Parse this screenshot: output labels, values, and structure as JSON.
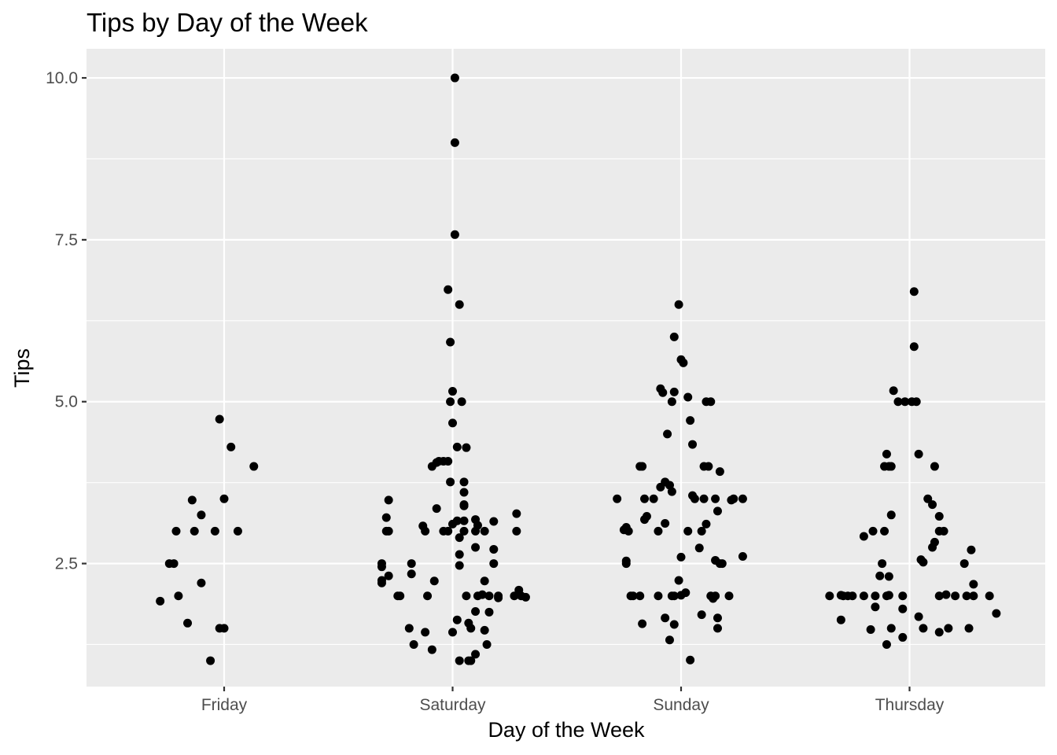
{
  "chart_data": {
    "type": "scatter",
    "title": "Tips by Day of the Week",
    "xlabel": "Day of the Week",
    "ylabel": "Tips",
    "categories": [
      "Friday",
      "Saturday",
      "Sunday",
      "Thursday"
    ],
    "yticks": [
      2.5,
      5.0,
      7.5,
      10.0
    ],
    "ytick_labels": [
      "2.5",
      "5.0",
      "7.5",
      "10.0"
    ],
    "ylim": [
      0.6,
      10.45
    ],
    "grid": true,
    "legend": "none",
    "colors": {
      "panel": "#ebebeb",
      "grid": "#ffffff",
      "point": "#000000",
      "tick_text": "#4d4d4d"
    },
    "points": [
      {
        "cat": 1,
        "jitter": -0.28,
        "y": 1.92
      },
      {
        "cat": 1,
        "jitter": -0.24,
        "y": 2.5
      },
      {
        "cat": 1,
        "jitter": -0.22,
        "y": 2.5
      },
      {
        "cat": 1,
        "jitter": -0.21,
        "y": 3.0
      },
      {
        "cat": 1,
        "jitter": -0.2,
        "y": 2.0
      },
      {
        "cat": 1,
        "jitter": -0.16,
        "y": 1.58
      },
      {
        "cat": 1,
        "jitter": -0.14,
        "y": 3.48
      },
      {
        "cat": 1,
        "jitter": -0.13,
        "y": 3.0
      },
      {
        "cat": 1,
        "jitter": -0.1,
        "y": 3.25
      },
      {
        "cat": 1,
        "jitter": -0.1,
        "y": 2.2
      },
      {
        "cat": 1,
        "jitter": -0.06,
        "y": 1.0
      },
      {
        "cat": 1,
        "jitter": -0.04,
        "y": 3.0
      },
      {
        "cat": 1,
        "jitter": -0.02,
        "y": 4.73
      },
      {
        "cat": 1,
        "jitter": -0.02,
        "y": 1.5
      },
      {
        "cat": 1,
        "jitter": 0.0,
        "y": 3.5
      },
      {
        "cat": 1,
        "jitter": 0.0,
        "y": 1.5
      },
      {
        "cat": 1,
        "jitter": 0.03,
        "y": 4.3
      },
      {
        "cat": 1,
        "jitter": 0.06,
        "y": 3.0
      },
      {
        "cat": 1,
        "jitter": 0.13,
        "y": 4.0
      },
      {
        "cat": 2,
        "jitter": 0.01,
        "y": 10.0
      },
      {
        "cat": 2,
        "jitter": 0.01,
        "y": 9.0
      },
      {
        "cat": 2,
        "jitter": 0.01,
        "y": 7.58
      },
      {
        "cat": 2,
        "jitter": -0.02,
        "y": 6.73
      },
      {
        "cat": 2,
        "jitter": 0.03,
        "y": 6.5
      },
      {
        "cat": 2,
        "jitter": -0.01,
        "y": 5.92
      },
      {
        "cat": 2,
        "jitter": 0.0,
        "y": 5.16
      },
      {
        "cat": 2,
        "jitter": -0.01,
        "y": 5.0
      },
      {
        "cat": 2,
        "jitter": 0.04,
        "y": 5.0
      },
      {
        "cat": 2,
        "jitter": 0.0,
        "y": 4.67
      },
      {
        "cat": 2,
        "jitter": 0.02,
        "y": 4.3
      },
      {
        "cat": 2,
        "jitter": 0.06,
        "y": 4.29
      },
      {
        "cat": 2,
        "jitter": -0.09,
        "y": 4.0
      },
      {
        "cat": 2,
        "jitter": -0.07,
        "y": 4.06
      },
      {
        "cat": 2,
        "jitter": -0.06,
        "y": 4.08
      },
      {
        "cat": 2,
        "jitter": -0.04,
        "y": 4.08
      },
      {
        "cat": 2,
        "jitter": -0.02,
        "y": 4.08
      },
      {
        "cat": 2,
        "jitter": -0.01,
        "y": 3.76
      },
      {
        "cat": 2,
        "jitter": 0.05,
        "y": 3.76
      },
      {
        "cat": 2,
        "jitter": 0.05,
        "y": 3.6
      },
      {
        "cat": 2,
        "jitter": 0.05,
        "y": 3.41
      },
      {
        "cat": 2,
        "jitter": 0.05,
        "y": 3.39
      },
      {
        "cat": 2,
        "jitter": -0.28,
        "y": 3.48
      },
      {
        "cat": 2,
        "jitter": -0.07,
        "y": 3.35
      },
      {
        "cat": 2,
        "jitter": -0.29,
        "y": 3.21
      },
      {
        "cat": 2,
        "jitter": -0.29,
        "y": 3.0
      },
      {
        "cat": 2,
        "jitter": -0.28,
        "y": 3.0
      },
      {
        "cat": 2,
        "jitter": -0.13,
        "y": 3.08
      },
      {
        "cat": 2,
        "jitter": -0.12,
        "y": 3.0
      },
      {
        "cat": 2,
        "jitter": -0.04,
        "y": 3.0
      },
      {
        "cat": 2,
        "jitter": -0.02,
        "y": 3.0
      },
      {
        "cat": 2,
        "jitter": 0.0,
        "y": 3.11
      },
      {
        "cat": 2,
        "jitter": 0.02,
        "y": 3.16
      },
      {
        "cat": 2,
        "jitter": 0.05,
        "y": 3.16
      },
      {
        "cat": 2,
        "jitter": 0.1,
        "y": 3.18
      },
      {
        "cat": 2,
        "jitter": 0.11,
        "y": 3.09
      },
      {
        "cat": 2,
        "jitter": 0.18,
        "y": 3.15
      },
      {
        "cat": 2,
        "jitter": 0.28,
        "y": 3.27
      },
      {
        "cat": 2,
        "jitter": 0.05,
        "y": 3.0
      },
      {
        "cat": 2,
        "jitter": 0.1,
        "y": 3.0
      },
      {
        "cat": 2,
        "jitter": 0.14,
        "y": 3.0
      },
      {
        "cat": 2,
        "jitter": 0.28,
        "y": 3.0
      },
      {
        "cat": 2,
        "jitter": 0.03,
        "y": 2.9
      },
      {
        "cat": 2,
        "jitter": 0.1,
        "y": 2.75
      },
      {
        "cat": 2,
        "jitter": 0.18,
        "y": 2.72
      },
      {
        "cat": 2,
        "jitter": 0.03,
        "y": 2.64
      },
      {
        "cat": 2,
        "jitter": 0.03,
        "y": 2.47
      },
      {
        "cat": 2,
        "jitter": 0.18,
        "y": 2.5
      },
      {
        "cat": 2,
        "jitter": -0.31,
        "y": 2.5
      },
      {
        "cat": 2,
        "jitter": -0.31,
        "y": 2.45
      },
      {
        "cat": 2,
        "jitter": -0.18,
        "y": 2.5
      },
      {
        "cat": 2,
        "jitter": -0.28,
        "y": 2.31
      },
      {
        "cat": 2,
        "jitter": -0.31,
        "y": 2.24
      },
      {
        "cat": 2,
        "jitter": -0.31,
        "y": 2.2
      },
      {
        "cat": 2,
        "jitter": -0.18,
        "y": 2.34
      },
      {
        "cat": 2,
        "jitter": -0.08,
        "y": 2.23
      },
      {
        "cat": 2,
        "jitter": 0.14,
        "y": 2.23
      },
      {
        "cat": 2,
        "jitter": -0.24,
        "y": 2.0
      },
      {
        "cat": 2,
        "jitter": -0.23,
        "y": 2.0
      },
      {
        "cat": 2,
        "jitter": -0.11,
        "y": 2.0
      },
      {
        "cat": 2,
        "jitter": 0.06,
        "y": 2.0
      },
      {
        "cat": 2,
        "jitter": 0.11,
        "y": 2.0
      },
      {
        "cat": 2,
        "jitter": 0.13,
        "y": 2.02
      },
      {
        "cat": 2,
        "jitter": 0.16,
        "y": 2.0
      },
      {
        "cat": 2,
        "jitter": 0.2,
        "y": 2.0
      },
      {
        "cat": 2,
        "jitter": 0.27,
        "y": 2.0
      },
      {
        "cat": 2,
        "jitter": 0.29,
        "y": 2.09
      },
      {
        "cat": 2,
        "jitter": 0.3,
        "y": 2.0
      },
      {
        "cat": 2,
        "jitter": 0.32,
        "y": 1.98
      },
      {
        "cat": 2,
        "jitter": 0.2,
        "y": 1.97
      },
      {
        "cat": 2,
        "jitter": 0.1,
        "y": 1.76
      },
      {
        "cat": 2,
        "jitter": 0.16,
        "y": 1.75
      },
      {
        "cat": 2,
        "jitter": 0.02,
        "y": 1.63
      },
      {
        "cat": 2,
        "jitter": 0.07,
        "y": 1.58
      },
      {
        "cat": 2,
        "jitter": 0.08,
        "y": 1.5
      },
      {
        "cat": 2,
        "jitter": 0.14,
        "y": 1.47
      },
      {
        "cat": 2,
        "jitter": -0.19,
        "y": 1.5
      },
      {
        "cat": 2,
        "jitter": -0.12,
        "y": 1.44
      },
      {
        "cat": 2,
        "jitter": 0.0,
        "y": 1.44
      },
      {
        "cat": 2,
        "jitter": -0.17,
        "y": 1.25
      },
      {
        "cat": 2,
        "jitter": 0.15,
        "y": 1.25
      },
      {
        "cat": 2,
        "jitter": -0.09,
        "y": 1.17
      },
      {
        "cat": 2,
        "jitter": 0.1,
        "y": 1.1
      },
      {
        "cat": 2,
        "jitter": 0.03,
        "y": 1.0
      },
      {
        "cat": 2,
        "jitter": 0.07,
        "y": 1.0
      },
      {
        "cat": 2,
        "jitter": 0.08,
        "y": 1.0
      },
      {
        "cat": 3,
        "jitter": -0.01,
        "y": 6.5
      },
      {
        "cat": 3,
        "jitter": -0.03,
        "y": 6.0
      },
      {
        "cat": 3,
        "jitter": 0.0,
        "y": 5.65
      },
      {
        "cat": 3,
        "jitter": 0.01,
        "y": 5.6
      },
      {
        "cat": 3,
        "jitter": -0.09,
        "y": 5.2
      },
      {
        "cat": 3,
        "jitter": -0.08,
        "y": 5.14
      },
      {
        "cat": 3,
        "jitter": -0.03,
        "y": 5.15
      },
      {
        "cat": 3,
        "jitter": 0.03,
        "y": 5.07
      },
      {
        "cat": 3,
        "jitter": -0.04,
        "y": 5.0
      },
      {
        "cat": 3,
        "jitter": 0.11,
        "y": 5.0
      },
      {
        "cat": 3,
        "jitter": 0.13,
        "y": 5.0
      },
      {
        "cat": 3,
        "jitter": 0.04,
        "y": 4.71
      },
      {
        "cat": 3,
        "jitter": -0.06,
        "y": 4.5
      },
      {
        "cat": 3,
        "jitter": 0.05,
        "y": 4.34
      },
      {
        "cat": 3,
        "jitter": -0.18,
        "y": 4.0
      },
      {
        "cat": 3,
        "jitter": -0.17,
        "y": 4.0
      },
      {
        "cat": 3,
        "jitter": 0.1,
        "y": 4.0
      },
      {
        "cat": 3,
        "jitter": 0.12,
        "y": 4.0
      },
      {
        "cat": 3,
        "jitter": 0.17,
        "y": 3.92
      },
      {
        "cat": 3,
        "jitter": -0.09,
        "y": 3.68
      },
      {
        "cat": 3,
        "jitter": -0.07,
        "y": 3.76
      },
      {
        "cat": 3,
        "jitter": -0.05,
        "y": 3.71
      },
      {
        "cat": 3,
        "jitter": -0.04,
        "y": 3.61
      },
      {
        "cat": 3,
        "jitter": -0.28,
        "y": 3.5
      },
      {
        "cat": 3,
        "jitter": -0.16,
        "y": 3.5
      },
      {
        "cat": 3,
        "jitter": -0.12,
        "y": 3.5
      },
      {
        "cat": 3,
        "jitter": 0.05,
        "y": 3.55
      },
      {
        "cat": 3,
        "jitter": 0.06,
        "y": 3.5
      },
      {
        "cat": 3,
        "jitter": 0.1,
        "y": 3.5
      },
      {
        "cat": 3,
        "jitter": 0.15,
        "y": 3.5
      },
      {
        "cat": 3,
        "jitter": 0.22,
        "y": 3.48
      },
      {
        "cat": 3,
        "jitter": 0.23,
        "y": 3.5
      },
      {
        "cat": 3,
        "jitter": 0.27,
        "y": 3.5
      },
      {
        "cat": 3,
        "jitter": 0.16,
        "y": 3.31
      },
      {
        "cat": 3,
        "jitter": -0.15,
        "y": 3.23
      },
      {
        "cat": 3,
        "jitter": -0.16,
        "y": 3.18
      },
      {
        "cat": 3,
        "jitter": -0.07,
        "y": 3.12
      },
      {
        "cat": 3,
        "jitter": 0.11,
        "y": 3.11
      },
      {
        "cat": 3,
        "jitter": -0.25,
        "y": 3.02
      },
      {
        "cat": 3,
        "jitter": -0.24,
        "y": 3.06
      },
      {
        "cat": 3,
        "jitter": -0.23,
        "y": 3.0
      },
      {
        "cat": 3,
        "jitter": -0.1,
        "y": 3.0
      },
      {
        "cat": 3,
        "jitter": 0.03,
        "y": 3.0
      },
      {
        "cat": 3,
        "jitter": 0.09,
        "y": 3.0
      },
      {
        "cat": 3,
        "jitter": 0.08,
        "y": 2.74
      },
      {
        "cat": 3,
        "jitter": 0.0,
        "y": 2.6
      },
      {
        "cat": 3,
        "jitter": 0.27,
        "y": 2.61
      },
      {
        "cat": 3,
        "jitter": -0.24,
        "y": 2.5
      },
      {
        "cat": 3,
        "jitter": -0.24,
        "y": 2.54
      },
      {
        "cat": 3,
        "jitter": 0.15,
        "y": 2.55
      },
      {
        "cat": 3,
        "jitter": 0.17,
        "y": 2.5
      },
      {
        "cat": 3,
        "jitter": 0.18,
        "y": 2.5
      },
      {
        "cat": 3,
        "jitter": -0.01,
        "y": 2.24
      },
      {
        "cat": 3,
        "jitter": -0.22,
        "y": 2.0
      },
      {
        "cat": 3,
        "jitter": -0.21,
        "y": 2.0
      },
      {
        "cat": 3,
        "jitter": -0.18,
        "y": 2.0
      },
      {
        "cat": 3,
        "jitter": -0.1,
        "y": 2.0
      },
      {
        "cat": 3,
        "jitter": -0.04,
        "y": 2.0
      },
      {
        "cat": 3,
        "jitter": -0.03,
        "y": 2.0
      },
      {
        "cat": 3,
        "jitter": 0.0,
        "y": 2.01
      },
      {
        "cat": 3,
        "jitter": 0.02,
        "y": 2.05
      },
      {
        "cat": 3,
        "jitter": 0.13,
        "y": 2.0
      },
      {
        "cat": 3,
        "jitter": 0.14,
        "y": 1.96
      },
      {
        "cat": 3,
        "jitter": 0.15,
        "y": 2.0
      },
      {
        "cat": 3,
        "jitter": 0.21,
        "y": 2.0
      },
      {
        "cat": 3,
        "jitter": 0.09,
        "y": 1.71
      },
      {
        "cat": 3,
        "jitter": -0.07,
        "y": 1.66
      },
      {
        "cat": 3,
        "jitter": 0.16,
        "y": 1.66
      },
      {
        "cat": 3,
        "jitter": -0.17,
        "y": 1.57
      },
      {
        "cat": 3,
        "jitter": -0.03,
        "y": 1.56
      },
      {
        "cat": 3,
        "jitter": 0.16,
        "y": 1.5
      },
      {
        "cat": 3,
        "jitter": -0.05,
        "y": 1.32
      },
      {
        "cat": 3,
        "jitter": 0.04,
        "y": 1.01
      },
      {
        "cat": 4,
        "jitter": 0.02,
        "y": 6.7
      },
      {
        "cat": 4,
        "jitter": 0.02,
        "y": 5.85
      },
      {
        "cat": 4,
        "jitter": -0.07,
        "y": 5.17
      },
      {
        "cat": 4,
        "jitter": -0.05,
        "y": 5.0
      },
      {
        "cat": 4,
        "jitter": -0.02,
        "y": 5.0
      },
      {
        "cat": 4,
        "jitter": 0.01,
        "y": 5.0
      },
      {
        "cat": 4,
        "jitter": 0.03,
        "y": 5.0
      },
      {
        "cat": 4,
        "jitter": -0.1,
        "y": 4.19
      },
      {
        "cat": 4,
        "jitter": 0.04,
        "y": 4.19
      },
      {
        "cat": 4,
        "jitter": -0.08,
        "y": 4.0
      },
      {
        "cat": 4,
        "jitter": -0.11,
        "y": 4.0
      },
      {
        "cat": 4,
        "jitter": -0.09,
        "y": 4.0
      },
      {
        "cat": 4,
        "jitter": 0.11,
        "y": 4.0
      },
      {
        "cat": 4,
        "jitter": 0.08,
        "y": 3.5
      },
      {
        "cat": 4,
        "jitter": 0.1,
        "y": 3.41
      },
      {
        "cat": 4,
        "jitter": -0.08,
        "y": 3.25
      },
      {
        "cat": 4,
        "jitter": 0.13,
        "y": 3.23
      },
      {
        "cat": 4,
        "jitter": -0.16,
        "y": 3.0
      },
      {
        "cat": 4,
        "jitter": -0.11,
        "y": 3.0
      },
      {
        "cat": 4,
        "jitter": 0.13,
        "y": 3.0
      },
      {
        "cat": 4,
        "jitter": 0.15,
        "y": 3.0
      },
      {
        "cat": 4,
        "jitter": -0.2,
        "y": 2.92
      },
      {
        "cat": 4,
        "jitter": 0.11,
        "y": 2.83
      },
      {
        "cat": 4,
        "jitter": 0.1,
        "y": 2.75
      },
      {
        "cat": 4,
        "jitter": 0.27,
        "y": 2.71
      },
      {
        "cat": 4,
        "jitter": 0.05,
        "y": 2.56
      },
      {
        "cat": 4,
        "jitter": 0.06,
        "y": 2.52
      },
      {
        "cat": 4,
        "jitter": -0.12,
        "y": 2.5
      },
      {
        "cat": 4,
        "jitter": 0.24,
        "y": 2.5
      },
      {
        "cat": 4,
        "jitter": -0.13,
        "y": 2.31
      },
      {
        "cat": 4,
        "jitter": -0.09,
        "y": 2.3
      },
      {
        "cat": 4,
        "jitter": 0.28,
        "y": 2.18
      },
      {
        "cat": 4,
        "jitter": -0.35,
        "y": 2.0
      },
      {
        "cat": 4,
        "jitter": -0.3,
        "y": 2.01
      },
      {
        "cat": 4,
        "jitter": -0.29,
        "y": 2.0
      },
      {
        "cat": 4,
        "jitter": -0.27,
        "y": 2.0
      },
      {
        "cat": 4,
        "jitter": -0.25,
        "y": 2.0
      },
      {
        "cat": 4,
        "jitter": -0.2,
        "y": 2.0
      },
      {
        "cat": 4,
        "jitter": -0.15,
        "y": 2.0
      },
      {
        "cat": 4,
        "jitter": -0.1,
        "y": 2.0
      },
      {
        "cat": 4,
        "jitter": -0.09,
        "y": 2.01
      },
      {
        "cat": 4,
        "jitter": -0.03,
        "y": 2.0
      },
      {
        "cat": 4,
        "jitter": 0.13,
        "y": 2.0
      },
      {
        "cat": 4,
        "jitter": 0.16,
        "y": 2.02
      },
      {
        "cat": 4,
        "jitter": 0.2,
        "y": 2.0
      },
      {
        "cat": 4,
        "jitter": 0.25,
        "y": 2.0
      },
      {
        "cat": 4,
        "jitter": 0.28,
        "y": 2.0
      },
      {
        "cat": 4,
        "jitter": 0.35,
        "y": 2.0
      },
      {
        "cat": 4,
        "jitter": -0.15,
        "y": 1.83
      },
      {
        "cat": 4,
        "jitter": -0.03,
        "y": 1.8
      },
      {
        "cat": 4,
        "jitter": 0.38,
        "y": 1.73
      },
      {
        "cat": 4,
        "jitter": 0.04,
        "y": 1.68
      },
      {
        "cat": 4,
        "jitter": -0.3,
        "y": 1.63
      },
      {
        "cat": 4,
        "jitter": -0.17,
        "y": 1.48
      },
      {
        "cat": 4,
        "jitter": -0.08,
        "y": 1.5
      },
      {
        "cat": 4,
        "jitter": 0.06,
        "y": 1.5
      },
      {
        "cat": 4,
        "jitter": 0.13,
        "y": 1.44
      },
      {
        "cat": 4,
        "jitter": 0.17,
        "y": 1.5
      },
      {
        "cat": 4,
        "jitter": 0.26,
        "y": 1.5
      },
      {
        "cat": 4,
        "jitter": -0.03,
        "y": 1.36
      },
      {
        "cat": 4,
        "jitter": -0.1,
        "y": 1.25
      }
    ]
  }
}
